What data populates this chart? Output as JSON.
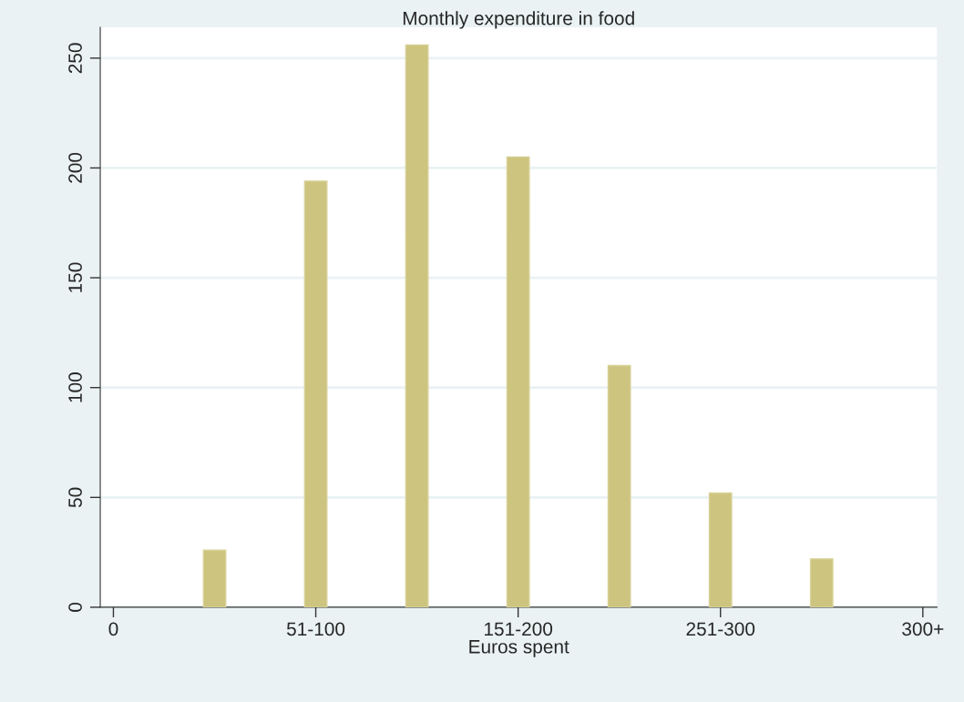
{
  "chart_data": {
    "type": "bar",
    "title": "Monthly expenditure in food",
    "xlabel": "Euros spent",
    "categories": [
      "0",
      null,
      "51-100",
      null,
      "151-200",
      null,
      "251-300",
      null,
      "300+"
    ],
    "values": [
      null,
      26,
      194,
      256,
      205,
      110,
      52,
      22,
      null
    ],
    "color": "#cdc47f",
    "ylim": [
      0,
      264
    ],
    "yticks": [
      0,
      50,
      100,
      150,
      200,
      250
    ],
    "grid": "y",
    "legend": false
  }
}
